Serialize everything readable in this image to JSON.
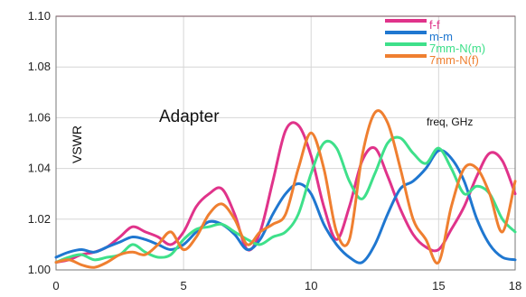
{
  "chart_data": {
    "type": "line",
    "title": "",
    "xlabel": "",
    "ylabel": "VSWR",
    "xlim": [
      0,
      18
    ],
    "ylim": [
      1.0,
      1.1
    ],
    "grid": true,
    "legend_position": "top-right",
    "x_ticks": [
      "0",
      "5",
      "10",
      "15",
      "18"
    ],
    "y_ticks": [
      "1.00",
      "1.02",
      "1.04",
      "1.06",
      "1.08",
      "1.10"
    ],
    "annotations": {
      "center_label": "Adapter",
      "x_unit_label": "freq, GHz"
    },
    "limit_line": {
      "value": 1.1,
      "color": "#e8437a"
    },
    "series": [
      {
        "name": "f-f",
        "color": "#e0338a",
        "x": [
          0,
          0.5,
          1,
          1.5,
          2,
          2.5,
          3,
          3.5,
          4,
          4.5,
          5,
          5.5,
          6,
          6.5,
          7,
          7.5,
          8,
          8.5,
          9,
          9.5,
          10,
          10.5,
          11,
          11.5,
          12,
          12.5,
          13,
          13.5,
          14,
          14.5,
          15,
          15.5,
          16,
          16.5,
          17,
          17.5,
          18
        ],
        "y": [
          1.003,
          1.004,
          1.006,
          1.007,
          1.009,
          1.013,
          1.017,
          1.015,
          1.013,
          1.01,
          1.015,
          1.025,
          1.03,
          1.032,
          1.022,
          1.008,
          1.015,
          1.035,
          1.055,
          1.057,
          1.045,
          1.025,
          1.012,
          1.025,
          1.043,
          1.048,
          1.037,
          1.024,
          1.014,
          1.009,
          1.008,
          1.016,
          1.025,
          1.037,
          1.046,
          1.043,
          1.03
        ]
      },
      {
        "name": "m-m",
        "color": "#1f77d0",
        "x": [
          0,
          0.5,
          1,
          1.5,
          2,
          2.5,
          3,
          3.5,
          4,
          4.5,
          5,
          5.5,
          6,
          6.5,
          7,
          7.5,
          8,
          8.5,
          9,
          9.5,
          10,
          10.5,
          11,
          11.5,
          12,
          12.5,
          13,
          13.5,
          14,
          14.5,
          15,
          15.5,
          16,
          16.5,
          17,
          17.5,
          18
        ],
        "y": [
          1.005,
          1.007,
          1.008,
          1.007,
          1.009,
          1.011,
          1.013,
          1.012,
          1.01,
          1.008,
          1.01,
          1.015,
          1.019,
          1.018,
          1.014,
          1.008,
          1.012,
          1.022,
          1.03,
          1.034,
          1.03,
          1.018,
          1.01,
          1.005,
          1.003,
          1.01,
          1.022,
          1.032,
          1.035,
          1.04,
          1.047,
          1.044,
          1.035,
          1.02,
          1.01,
          1.005,
          1.004
        ]
      },
      {
        "name": "7mm-N(m)",
        "color": "#3ee08a",
        "x": [
          0,
          0.5,
          1,
          1.5,
          2,
          2.5,
          3,
          3.5,
          4,
          4.5,
          5,
          5.5,
          6,
          6.5,
          7,
          7.5,
          8,
          8.5,
          9,
          9.5,
          10,
          10.5,
          11,
          11.5,
          12,
          12.5,
          13,
          13.5,
          14,
          14.5,
          15,
          15.5,
          16,
          16.5,
          17,
          17.5,
          18
        ],
        "y": [
          1.003,
          1.005,
          1.006,
          1.004,
          1.005,
          1.006,
          1.01,
          1.007,
          1.005,
          1.006,
          1.012,
          1.016,
          1.017,
          1.018,
          1.015,
          1.012,
          1.01,
          1.013,
          1.015,
          1.022,
          1.038,
          1.05,
          1.048,
          1.035,
          1.028,
          1.038,
          1.05,
          1.052,
          1.046,
          1.042,
          1.048,
          1.04,
          1.03,
          1.033,
          1.03,
          1.02,
          1.015
        ]
      },
      {
        "name": "7mm-N(f)",
        "color": "#ef7f30",
        "x": [
          0,
          0.5,
          1,
          1.5,
          2,
          2.5,
          3,
          3.5,
          4,
          4.5,
          5,
          5.5,
          6,
          6.5,
          7,
          7.5,
          8,
          8.5,
          9,
          9.5,
          10,
          10.5,
          11,
          11.5,
          12,
          12.5,
          13,
          13.5,
          14,
          14.5,
          15,
          15.5,
          16,
          16.5,
          17,
          17.5,
          18
        ],
        "y": [
          1.003,
          1.004,
          1.002,
          1.001,
          1.003,
          1.006,
          1.007,
          1.006,
          1.01,
          1.015,
          1.008,
          1.013,
          1.022,
          1.026,
          1.02,
          1.01,
          1.015,
          1.018,
          1.022,
          1.04,
          1.054,
          1.04,
          1.015,
          1.012,
          1.045,
          1.062,
          1.058,
          1.04,
          1.02,
          1.012,
          1.003,
          1.025,
          1.04,
          1.04,
          1.03,
          1.015,
          1.035
        ]
      }
    ]
  }
}
